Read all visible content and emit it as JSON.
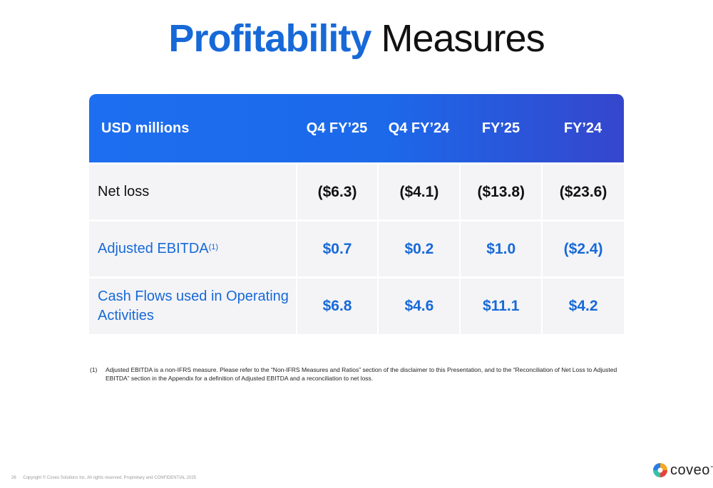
{
  "title": {
    "accent": "Profitability",
    "rest": "Measures"
  },
  "table": {
    "headers": [
      "USD millions",
      "Q4 FY’25",
      "Q4 FY’24",
      "FY’25",
      "FY’24"
    ],
    "rows": [
      {
        "label": "Net loss",
        "values": [
          "($6.3)",
          "($4.1)",
          "($13.8)",
          "($23.6)"
        ]
      },
      {
        "label": "Adjusted EBITDA",
        "sup": "(1)",
        "values": [
          "$0.7",
          "$0.2",
          "$1.0",
          "($2.4)"
        ]
      },
      {
        "label_line1": "Cash Flows used in Operating",
        "label_line2": "Activities",
        "values": [
          "$6.8",
          "$4.6",
          "$11.1",
          "$4.2"
        ]
      }
    ]
  },
  "footnote": {
    "mark": "(1)",
    "text": "Adjusted EBITDA is a non-IFRS measure. Please refer to the “Non-IFRS Measures and Ratios” section of the disclaimer to this Presentation, and to the “Reconciliation of Net Loss to Adjusted EBITDA” section in the Appendix for a definition of Adjusted EBITDA and a reconciliation to net loss."
  },
  "footer": {
    "page": "26",
    "copyright": "Copyright © Coveo Solutions Inc. All rights reserved. Proprietary and CONFIDENTIAL 2025"
  },
  "logo": {
    "word": "coveo",
    "tm": "™"
  },
  "colors": {
    "accent": "#1769d8",
    "header_start": "#1d6ef0",
    "header_end": "#3546cc",
    "cell_bg": "#f4f4f6"
  }
}
